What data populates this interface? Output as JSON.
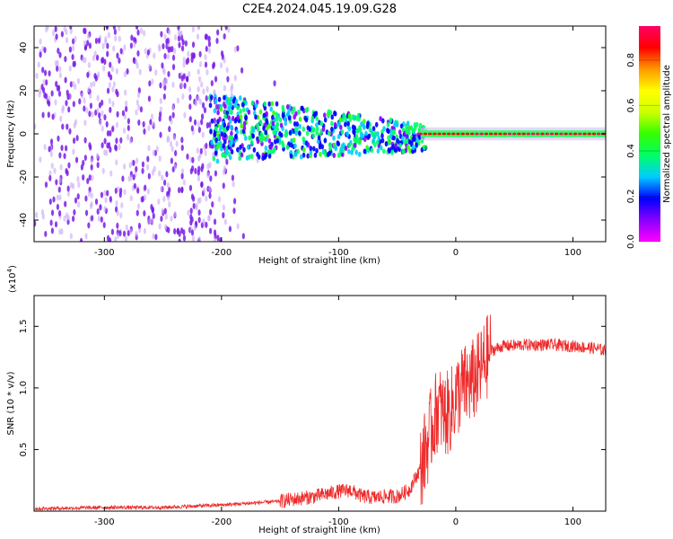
{
  "title": "C2E4.2024.045.19.09.G28",
  "colors": {
    "snr_line": "#ee2a2a",
    "spectrogram_noise": "#7a1ce8",
    "colorbar": [
      "#ff00ff",
      "#8800ff",
      "#0000ff",
      "#00ccff",
      "#00ff66",
      "#33ff00",
      "#ccff00",
      "#ffff00",
      "#ff9900",
      "#ff0000",
      "#ff0066"
    ]
  },
  "chart_data": [
    {
      "type": "heatmap",
      "xlabel": "Height of straight line (km)",
      "ylabel": "Frequency (Hz)",
      "xlim": [
        -360,
        128
      ],
      "ylim": [
        -50,
        50
      ],
      "xticks": [
        -300,
        -200,
        -100,
        0,
        100
      ],
      "yticks": [
        -40,
        -20,
        0,
        20,
        40
      ],
      "colorbar": {
        "label": "Normalized spectral amplitude",
        "range": [
          0,
          0.95
        ],
        "ticks": [
          "0.0",
          "0.2",
          "0.4",
          "0.6",
          "0.8"
        ]
      },
      "regions": [
        {
          "x_range": [
            -360,
            -200
          ],
          "freq_range": [
            -50,
            50
          ],
          "amplitude": "low noise, broadband"
        },
        {
          "x_range": [
            -200,
            -30
          ],
          "freq_range": [
            -12,
            15
          ],
          "amplitude": "medium, narrowing band"
        },
        {
          "x_range": [
            -30,
            128
          ],
          "freq_range": [
            -2,
            2
          ],
          "amplitude": "high, centered at 0 Hz"
        }
      ]
    },
    {
      "type": "line",
      "xlabel": "Height of straight line (km)",
      "ylabel": "SNR (10 * v/v)",
      "y_multiplier": "(x10",
      "y_multiplier_exp": "4",
      "xlim": [
        -360,
        128
      ],
      "ylim": [
        0,
        1.75
      ],
      "xticks": [
        -300,
        -200,
        -100,
        0,
        100
      ],
      "yticks": [
        "0.5",
        "1.0",
        "1.5"
      ],
      "series": [
        {
          "x": [
            -360,
            -300,
            -250,
            -200,
            -150,
            -120,
            -100,
            -90,
            -80,
            -70,
            -60,
            -50,
            -40,
            -30,
            -25,
            -20,
            -15,
            -10,
            -5,
            0,
            5,
            10,
            15,
            20,
            25,
            30,
            40,
            60,
            80,
            100,
            110,
            120,
            128
          ],
          "values": [
            0.02,
            0.03,
            0.03,
            0.05,
            0.08,
            0.12,
            0.16,
            0.17,
            0.12,
            0.11,
            0.12,
            0.12,
            0.17,
            0.35,
            0.52,
            0.7,
            0.85,
            0.78,
            0.8,
            0.92,
            1.0,
            1.02,
            1.06,
            1.12,
            1.22,
            1.3,
            1.34,
            1.35,
            1.35,
            1.34,
            1.33,
            1.32,
            1.3
          ]
        }
      ]
    }
  ]
}
